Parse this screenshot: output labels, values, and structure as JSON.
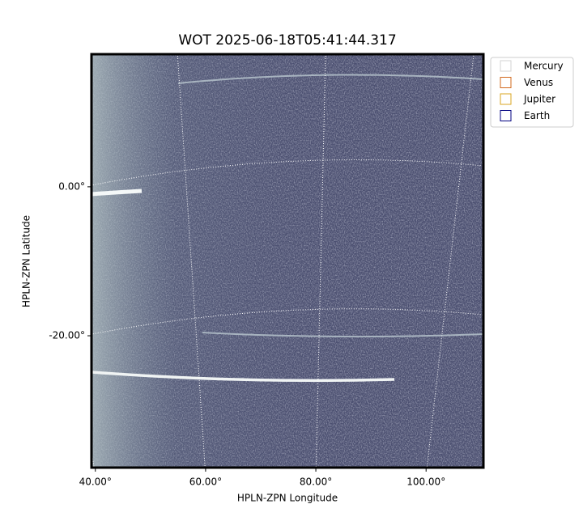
{
  "chart_data": {
    "type": "image",
    "title": "WOT 2025-06-18T05:41:44.317",
    "x_label": "HPLN-ZPN Longitude",
    "y_label": "HPLN-ZPN Latitude",
    "xlim": [
      39.3,
      110.4
    ],
    "ylim": [
      -37.7,
      17.8
    ],
    "xticks": [
      {
        "value": 40,
        "label": "40.00°"
      },
      {
        "value": 60,
        "label": "60.00°"
      },
      {
        "value": 80,
        "label": "80.00°"
      },
      {
        "value": 100,
        "label": "100.00°"
      }
    ],
    "yticks": [
      {
        "value": 0,
        "label": "0.00°"
      },
      {
        "value": -20,
        "label": "-20.00°"
      }
    ],
    "grid": true,
    "legend_position": "outside upper right",
    "legend": [
      {
        "name": "Mercury",
        "color": "#d3d3d3"
      },
      {
        "name": "Venus",
        "color": "#d2691e"
      },
      {
        "name": "Jupiter",
        "color": "#daa520"
      },
      {
        "name": "Earth",
        "color": "#000080"
      }
    ]
  }
}
